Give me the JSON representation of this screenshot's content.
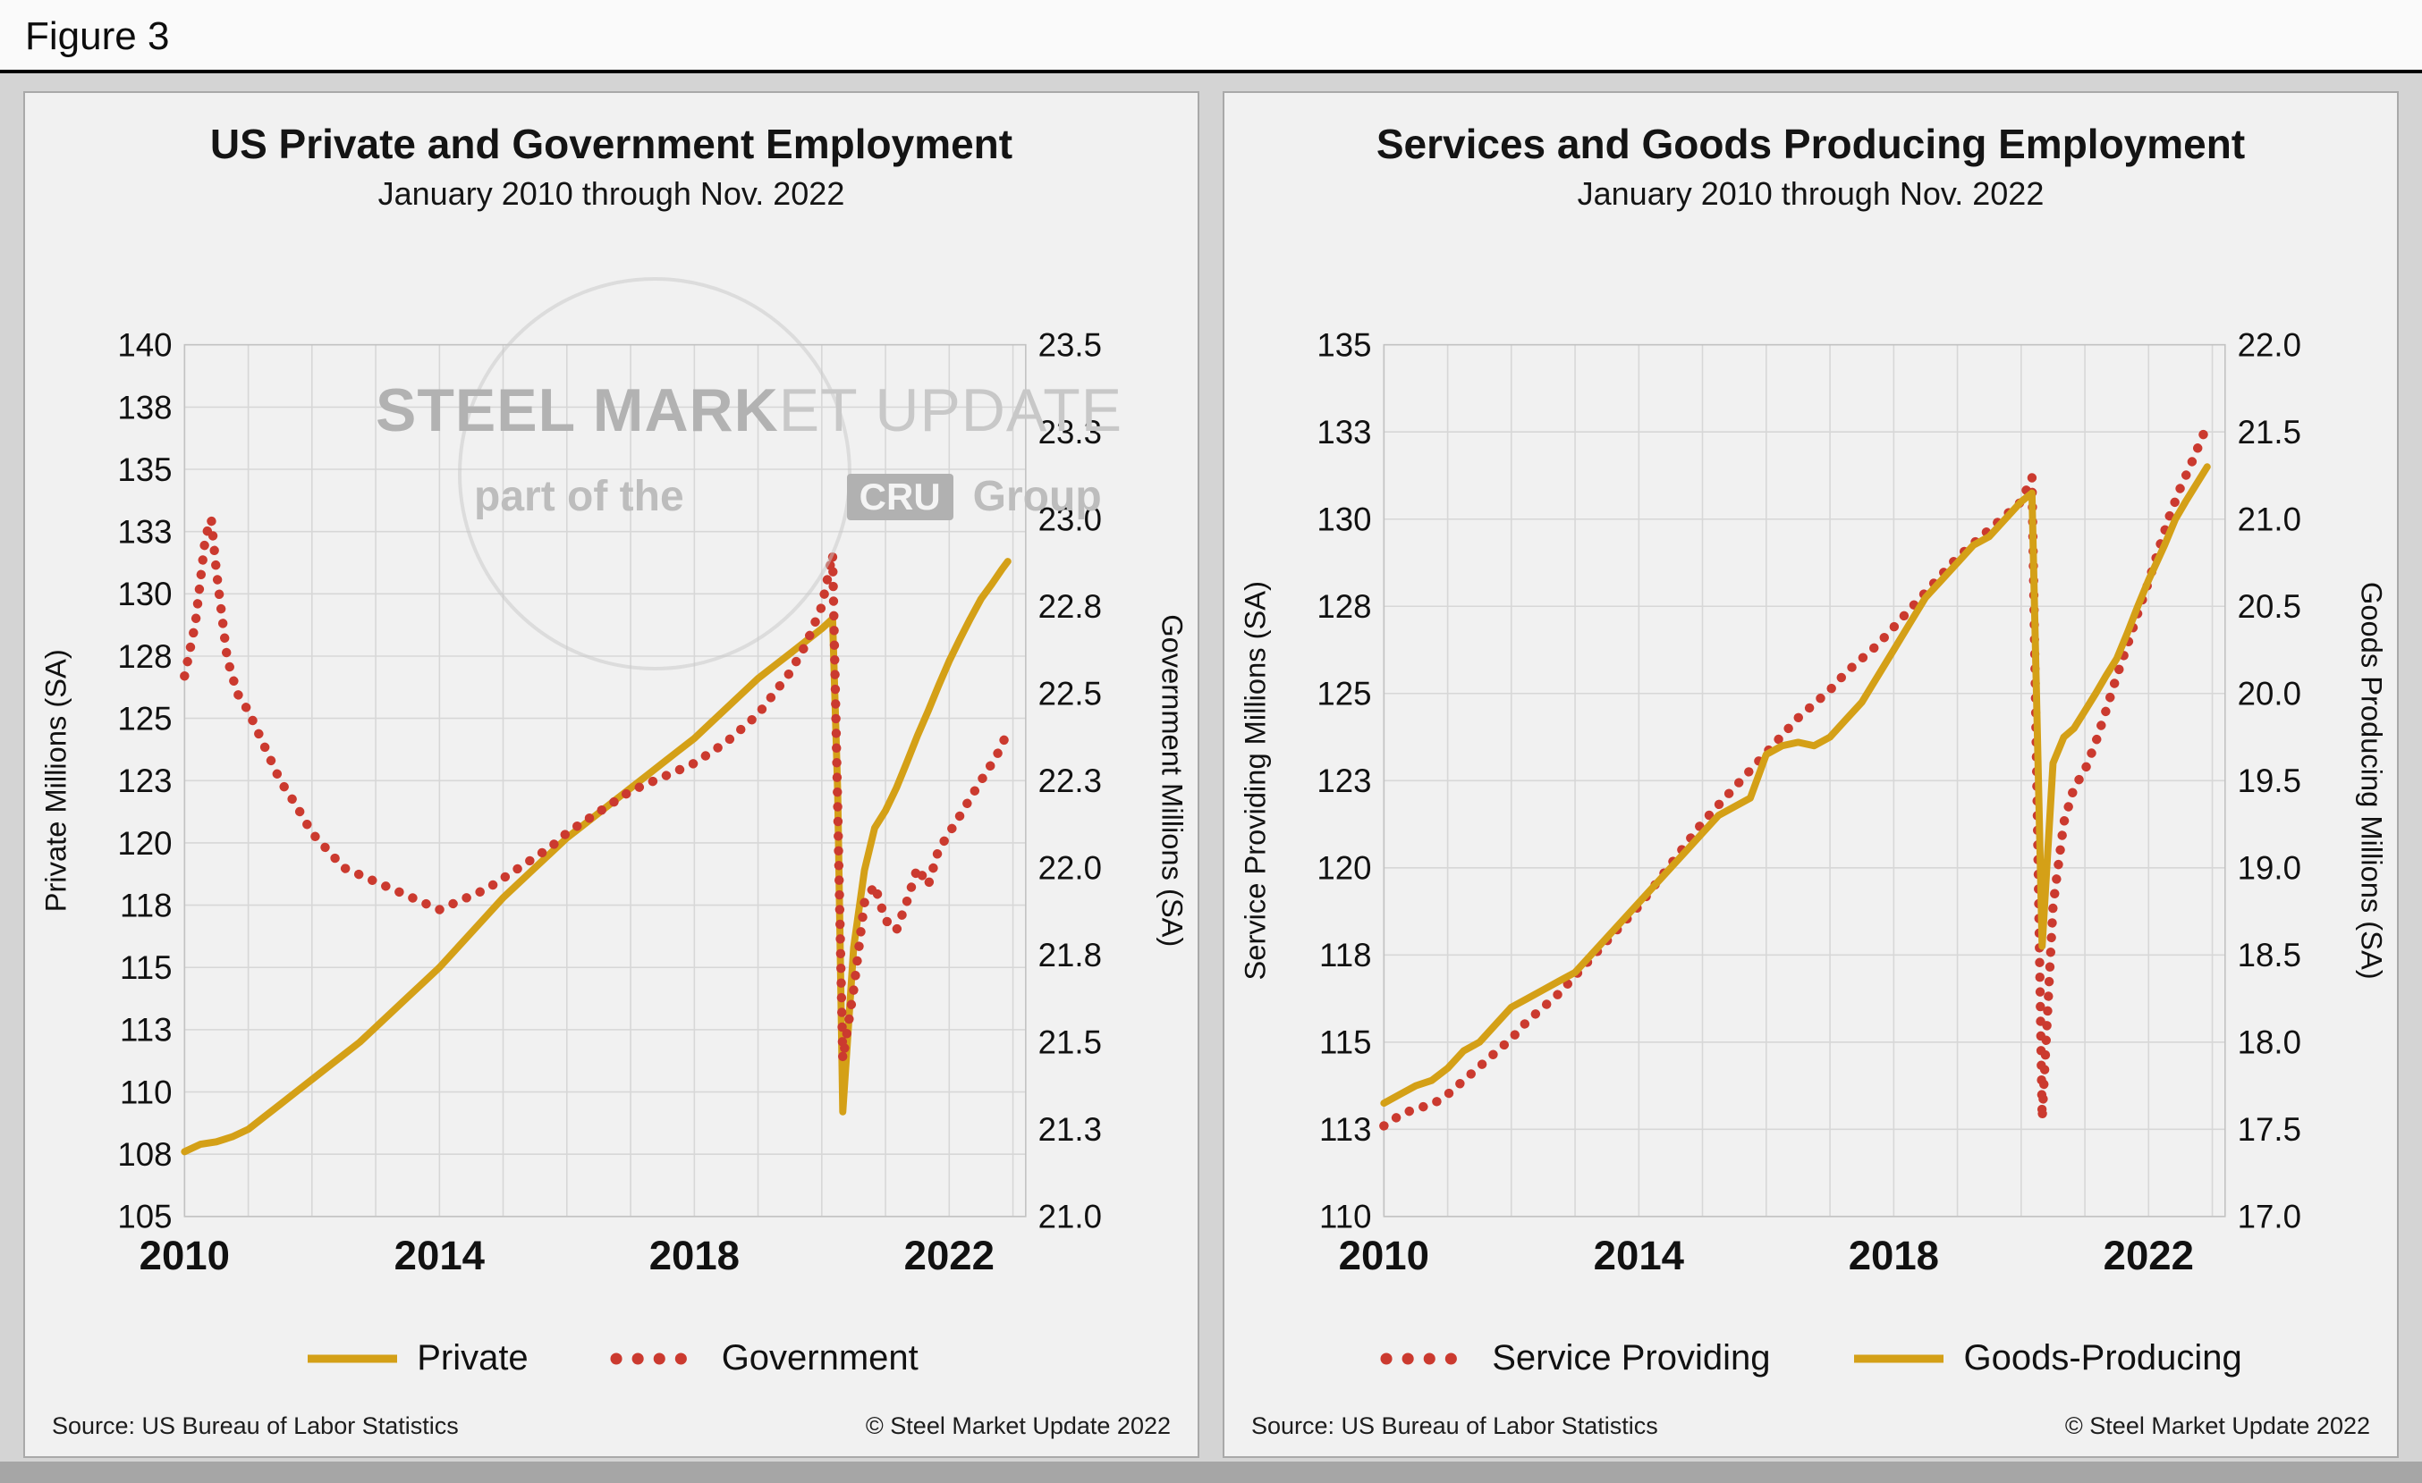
{
  "figure_label": "Figure 3",
  "watermark": {
    "text_bold": "STEEL MARK",
    "text_light": "ET UPDATE",
    "tagline_prefix": "part of the",
    "tagline_badge": "CRU",
    "tagline_suffix": "Group"
  },
  "chart_data": [
    {
      "type": "line",
      "title": "US Private and Government Employment",
      "subtitle": "January 2010 through Nov. 2022",
      "source": "Source: US Bureau  of Labor Statistics",
      "copyright": "© Steel Market Update 2022",
      "x_range": [
        2010,
        2023.2
      ],
      "x_ticks": [
        2010,
        2014,
        2018,
        2022
      ],
      "grid": true,
      "legend_position": "bottom",
      "left_axis": {
        "label": "Private Millions (SA)",
        "range": [
          105,
          140
        ],
        "tick_values": [
          140,
          137.5,
          135,
          132.5,
          130,
          127.5,
          125,
          122.5,
          120,
          117.5,
          115,
          112.5,
          110,
          107.5,
          105
        ],
        "tick_labels": [
          "140",
          "138",
          "135",
          "133",
          "130",
          "128",
          "125",
          "123",
          "120",
          "118",
          "115",
          "113",
          "110",
          "108",
          "105"
        ]
      },
      "right_axis": {
        "label": "Government Millions (SA)",
        "range": [
          21.0,
          23.5
        ],
        "tick_values": [
          23.5,
          23.25,
          23.0,
          22.75,
          22.5,
          22.25,
          22.0,
          21.75,
          21.5,
          21.25,
          21.0
        ],
        "tick_labels": [
          "23.5",
          "23.3",
          "23.0",
          "22.8",
          "22.5",
          "22.3",
          "22.0",
          "21.8",
          "21.5",
          "21.3",
          "21.0"
        ]
      },
      "series": [
        {
          "name": "Private",
          "axis": "left",
          "style": "solid",
          "color": "#D4A017",
          "x": [
            2010.0,
            2010.25,
            2010.5,
            2010.75,
            2011.0,
            2011.25,
            2011.5,
            2011.75,
            2012.0,
            2012.25,
            2012.5,
            2012.75,
            2013.0,
            2013.25,
            2013.5,
            2013.75,
            2014.0,
            2014.25,
            2014.5,
            2014.75,
            2015.0,
            2015.25,
            2015.5,
            2015.75,
            2016.0,
            2016.25,
            2016.5,
            2016.75,
            2017.0,
            2017.25,
            2017.5,
            2017.75,
            2018.0,
            2018.25,
            2018.5,
            2018.75,
            2019.0,
            2019.25,
            2019.5,
            2019.75,
            2020.0,
            2020.17,
            2020.25,
            2020.33,
            2020.5,
            2020.67,
            2020.83,
            2021.0,
            2021.17,
            2021.33,
            2021.5,
            2021.67,
            2021.83,
            2022.0,
            2022.17,
            2022.33,
            2022.5,
            2022.67,
            2022.83,
            2022.92
          ],
          "values": [
            107.6,
            107.9,
            108.0,
            108.2,
            108.5,
            109.0,
            109.5,
            110.0,
            110.5,
            111.0,
            111.5,
            112.0,
            112.6,
            113.2,
            113.8,
            114.4,
            115.0,
            115.7,
            116.4,
            117.1,
            117.8,
            118.4,
            119.0,
            119.6,
            120.2,
            120.7,
            121.2,
            121.7,
            122.2,
            122.7,
            123.2,
            123.7,
            124.2,
            124.8,
            125.4,
            126.0,
            126.6,
            127.1,
            127.6,
            128.1,
            128.6,
            129.0,
            122.0,
            109.2,
            115.8,
            118.9,
            120.6,
            121.3,
            122.2,
            123.2,
            124.3,
            125.3,
            126.3,
            127.3,
            128.2,
            129.0,
            129.8,
            130.4,
            131.0,
            131.3
          ]
        },
        {
          "name": "Government",
          "axis": "right",
          "style": "dotted",
          "color": "#CB3A2F",
          "x": [
            2010.0,
            2010.17,
            2010.33,
            2010.42,
            2010.5,
            2010.67,
            2010.83,
            2011.0,
            2011.25,
            2011.5,
            2011.75,
            2012.0,
            2012.25,
            2012.5,
            2012.75,
            2013.0,
            2013.25,
            2013.5,
            2013.75,
            2014.0,
            2014.25,
            2014.5,
            2014.75,
            2015.0,
            2015.25,
            2015.5,
            2015.75,
            2016.0,
            2016.25,
            2016.5,
            2016.75,
            2017.0,
            2017.25,
            2017.5,
            2017.75,
            2018.0,
            2018.25,
            2018.5,
            2018.75,
            2019.0,
            2019.25,
            2019.5,
            2019.75,
            2020.0,
            2020.17,
            2020.33,
            2020.5,
            2020.67,
            2020.83,
            2021.0,
            2021.17,
            2021.33,
            2021.5,
            2021.67,
            2021.83,
            2022.0,
            2022.17,
            2022.33,
            2022.5,
            2022.67,
            2022.83,
            2022.92
          ],
          "values": [
            22.55,
            22.7,
            22.95,
            23.0,
            22.85,
            22.6,
            22.5,
            22.45,
            22.35,
            22.25,
            22.18,
            22.1,
            22.05,
            22.0,
            21.98,
            21.96,
            21.94,
            21.92,
            21.9,
            21.88,
            21.9,
            21.92,
            21.94,
            21.97,
            22.0,
            22.03,
            22.06,
            22.1,
            22.13,
            22.16,
            22.19,
            22.22,
            22.24,
            22.26,
            22.28,
            22.3,
            22.33,
            22.36,
            22.4,
            22.44,
            22.5,
            22.56,
            22.64,
            22.75,
            22.9,
            21.45,
            21.65,
            21.9,
            21.95,
            21.85,
            21.82,
            21.9,
            22.0,
            21.95,
            22.05,
            22.1,
            22.15,
            22.2,
            22.25,
            22.3,
            22.35,
            22.4
          ]
        }
      ]
    },
    {
      "type": "line",
      "title": "Services and Goods Producing Employment",
      "subtitle": "January 2010 through Nov. 2022",
      "source": "Source: US Bureau  of Labor Statistics",
      "copyright": "© Steel Market Update 2022",
      "x_range": [
        2010,
        2023.2
      ],
      "x_ticks": [
        2010,
        2014,
        2018,
        2022
      ],
      "grid": true,
      "legend_position": "bottom",
      "left_axis": {
        "label": "Service Providing Millions (SA)",
        "range": [
          110,
          135
        ],
        "tick_values": [
          135,
          132.5,
          130,
          127.5,
          125,
          122.5,
          120,
          117.5,
          115,
          112.5,
          110
        ],
        "tick_labels": [
          "135",
          "133",
          "130",
          "128",
          "125",
          "123",
          "120",
          "118",
          "115",
          "113",
          "110"
        ]
      },
      "right_axis": {
        "label": "Goods Producing Millions (SA)",
        "range": [
          17.0,
          22.0
        ],
        "tick_values": [
          22.0,
          21.5,
          21.0,
          20.5,
          20.0,
          19.5,
          19.0,
          18.5,
          18.0,
          17.5,
          17.0
        ],
        "tick_labels": [
          "22.0",
          "21.5",
          "21.0",
          "20.5",
          "20.0",
          "19.5",
          "19.0",
          "18.5",
          "18.0",
          "17.5",
          "17.0"
        ]
      },
      "series": [
        {
          "name": "Service Providing",
          "axis": "left",
          "style": "dotted",
          "color": "#CB3A2F",
          "x": [
            2010.0,
            2010.25,
            2010.5,
            2010.75,
            2011.0,
            2011.25,
            2011.5,
            2011.75,
            2012.0,
            2012.25,
            2012.5,
            2012.75,
            2013.0,
            2013.25,
            2013.5,
            2013.75,
            2014.0,
            2014.25,
            2014.5,
            2014.75,
            2015.0,
            2015.25,
            2015.5,
            2015.75,
            2016.0,
            2016.25,
            2016.5,
            2016.75,
            2017.0,
            2017.25,
            2017.5,
            2017.75,
            2018.0,
            2018.25,
            2018.5,
            2018.75,
            2019.0,
            2019.25,
            2019.5,
            2019.75,
            2020.0,
            2020.17,
            2020.33,
            2020.5,
            2020.67,
            2020.83,
            2021.0,
            2021.17,
            2021.33,
            2021.5,
            2021.67,
            2021.83,
            2022.0,
            2022.17,
            2022.33,
            2022.5,
            2022.67,
            2022.83,
            2022.92
          ],
          "values": [
            112.6,
            112.9,
            113.1,
            113.2,
            113.5,
            113.9,
            114.3,
            114.7,
            115.1,
            115.6,
            116.0,
            116.4,
            116.9,
            117.4,
            117.9,
            118.4,
            118.9,
            119.5,
            120.1,
            120.7,
            121.3,
            121.8,
            122.3,
            122.8,
            123.3,
            123.8,
            124.3,
            124.7,
            125.1,
            125.6,
            126.0,
            126.4,
            126.9,
            127.4,
            127.9,
            128.4,
            128.9,
            129.3,
            129.7,
            130.1,
            130.5,
            131.2,
            112.8,
            118.9,
            121.3,
            122.3,
            122.8,
            123.6,
            124.5,
            125.5,
            126.4,
            127.3,
            128.2,
            129.2,
            130.1,
            130.9,
            131.6,
            132.3,
            132.7
          ]
        },
        {
          "name": "Goods-Producing",
          "axis": "right",
          "style": "solid",
          "color": "#D4A017",
          "x": [
            2010.0,
            2010.25,
            2010.5,
            2010.75,
            2011.0,
            2011.25,
            2011.5,
            2011.75,
            2012.0,
            2012.25,
            2012.5,
            2012.75,
            2013.0,
            2013.25,
            2013.5,
            2013.75,
            2014.0,
            2014.25,
            2014.5,
            2014.75,
            2015.0,
            2015.25,
            2015.5,
            2015.75,
            2016.0,
            2016.25,
            2016.5,
            2016.75,
            2017.0,
            2017.25,
            2017.5,
            2017.75,
            2018.0,
            2018.25,
            2018.5,
            2018.75,
            2019.0,
            2019.25,
            2019.5,
            2019.75,
            2020.0,
            2020.17,
            2020.33,
            2020.5,
            2020.67,
            2020.83,
            2021.0,
            2021.17,
            2021.33,
            2021.5,
            2021.67,
            2021.83,
            2022.0,
            2022.25,
            2022.42,
            2022.58,
            2022.75,
            2022.92
          ],
          "values": [
            17.65,
            17.7,
            17.75,
            17.78,
            17.85,
            17.95,
            18.0,
            18.1,
            18.2,
            18.25,
            18.3,
            18.35,
            18.4,
            18.5,
            18.6,
            18.7,
            18.8,
            18.9,
            19.0,
            19.1,
            19.2,
            19.3,
            19.35,
            19.4,
            19.65,
            19.7,
            19.72,
            19.7,
            19.75,
            19.85,
            19.95,
            20.1,
            20.25,
            20.4,
            20.55,
            20.65,
            20.75,
            20.85,
            20.9,
            21.0,
            21.1,
            21.15,
            18.55,
            19.6,
            19.75,
            19.8,
            19.9,
            20.0,
            20.1,
            20.2,
            20.35,
            20.5,
            20.65,
            20.85,
            21.0,
            21.1,
            21.2,
            21.3
          ]
        }
      ]
    }
  ]
}
